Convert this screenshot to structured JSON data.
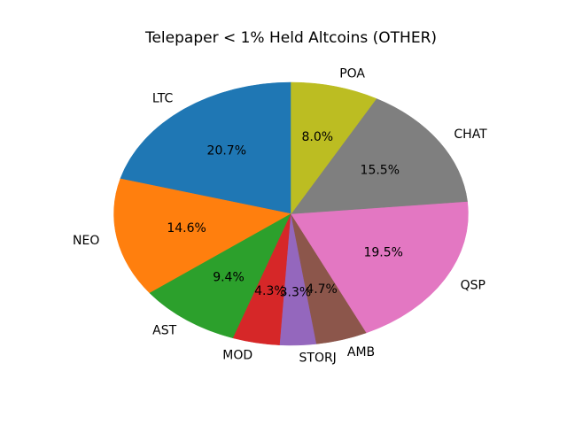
{
  "chart_data": {
    "type": "pie",
    "title": "Telepaper < 1% Held Altcoins (OTHER)",
    "start_angle": 90,
    "direction": "counterclockwise",
    "label_distance": 1.1,
    "pct_distance": 0.6,
    "background": "#ffffff",
    "text_color": "#000000",
    "slices": [
      {
        "label": "LTC",
        "value": 20.7,
        "pct_text": "20.7%",
        "color": "#1f77b4"
      },
      {
        "label": "NEO",
        "value": 14.6,
        "pct_text": "14.6%",
        "color": "#ff7f0e"
      },
      {
        "label": "AST",
        "value": 9.4,
        "pct_text": "9.4%",
        "color": "#2ca02c"
      },
      {
        "label": "MOD",
        "value": 4.3,
        "pct_text": "4.3%",
        "color": "#d62728"
      },
      {
        "label": "STORJ",
        "value": 3.3,
        "pct_text": "3.3%",
        "color": "#9467bd"
      },
      {
        "label": "AMB",
        "value": 4.7,
        "pct_text": "4.7%",
        "color": "#8c564b"
      },
      {
        "label": "QSP",
        "value": 19.5,
        "pct_text": "19.5%",
        "color": "#e377c2"
      },
      {
        "label": "CHAT",
        "value": 15.5,
        "pct_text": "15.5%",
        "color": "#7f7f7f"
      },
      {
        "label": "POA",
        "value": 8.0,
        "pct_text": "8.0%",
        "color": "#bcbd22"
      }
    ]
  }
}
